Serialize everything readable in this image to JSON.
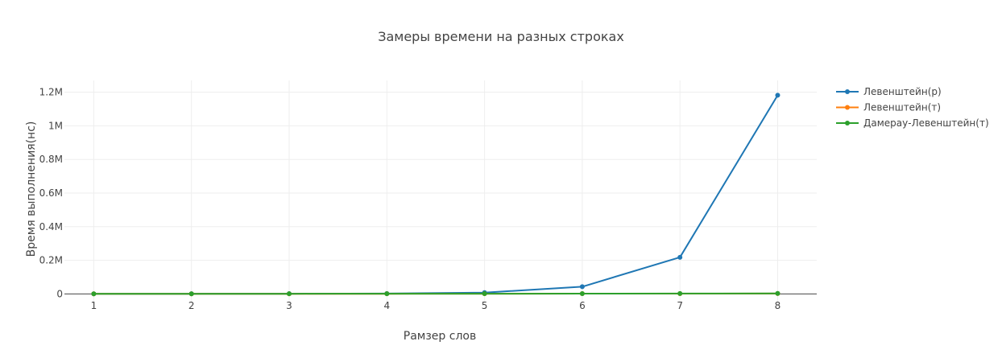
{
  "chart_data": {
    "type": "line",
    "title": "Замеры времени на разных строках",
    "xlabel": "Рамзер слов",
    "ylabel": "Время выполнения(нс)",
    "x": [
      1,
      2,
      3,
      4,
      5,
      6,
      7,
      8
    ],
    "xlim": [
      0.7,
      8.4
    ],
    "ylim": [
      -70000,
      1270000
    ],
    "y_ticks": [
      0,
      200000,
      400000,
      600000,
      800000,
      1000000,
      1200000
    ],
    "y_tick_labels": [
      "0",
      "0.2M",
      "0.4M",
      "0.6M",
      "0.8M",
      "1M",
      "1.2M"
    ],
    "grid": true,
    "legend_position": "top-right",
    "series": [
      {
        "name": "Левенштейн(р)",
        "color": "#1f77b4",
        "values": [
          300,
          1000,
          1500,
          2500,
          8000,
          43000,
          218000,
          1182000
        ]
      },
      {
        "name": "Левенштейн(т)",
        "color": "#ff7f0e",
        "values": [
          400,
          600,
          800,
          1000,
          1300,
          1600,
          1900,
          2300
        ]
      },
      {
        "name": "Дамерау-Левенштейн(т)",
        "color": "#2ca02c",
        "values": [
          500,
          700,
          900,
          1100,
          1500,
          1900,
          2300,
          2800
        ]
      }
    ]
  }
}
